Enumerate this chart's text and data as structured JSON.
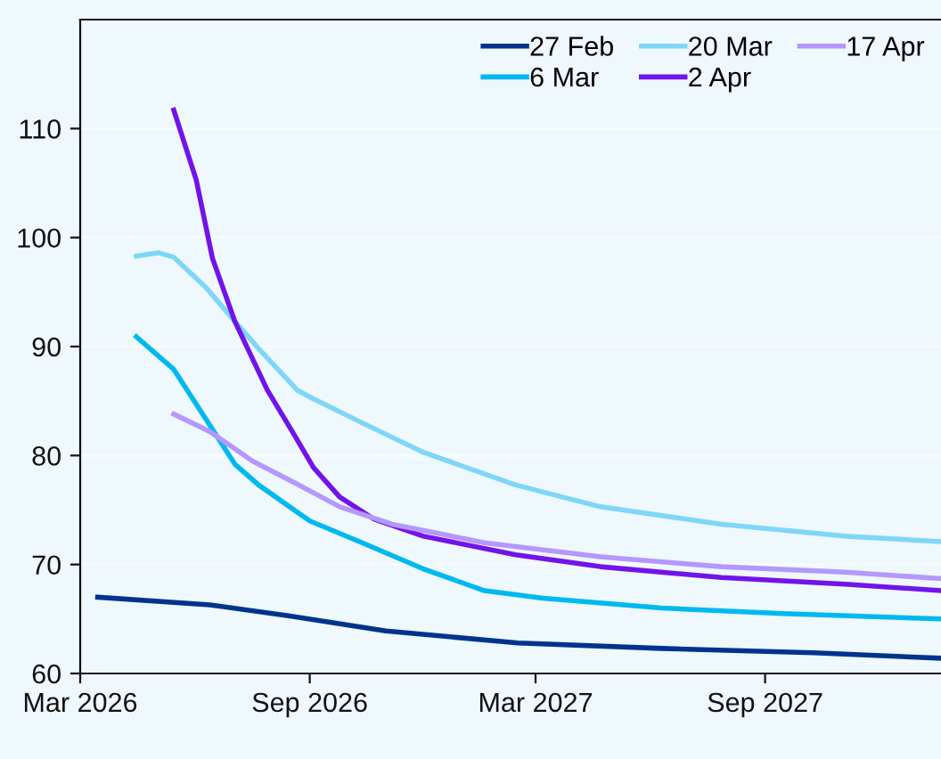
{
  "chart_data": {
    "type": "line",
    "xlim": [
      "2026-03-01",
      "2028-01-20"
    ],
    "xticks": [
      {
        "value": "2026-03-01",
        "label": "Mar 2026"
      },
      {
        "value": "2026-09-01",
        "label": "Sep 2026"
      },
      {
        "value": "2027-03-01",
        "label": "Mar 2027"
      },
      {
        "value": "2027-09-01",
        "label": "Sep 2027"
      }
    ],
    "ylim": [
      60,
      120
    ],
    "yticks": [
      60,
      70,
      80,
      90,
      100,
      110
    ],
    "grid": "y",
    "legend": "top right",
    "marker": "none",
    "line_style": "solid",
    "series": [
      {
        "name": "27 Feb",
        "color": "#00338d",
        "x": [
          "2026-03-15",
          "2026-06-13",
          "2026-08-15",
          "2026-11-01",
          "2027-02-15",
          "2027-06-10",
          "2027-10-10",
          "2028-01-20"
        ],
        "values": [
          67.0,
          66.3,
          65.3,
          63.9,
          62.8,
          62.3,
          61.9,
          61.4
        ]
      },
      {
        "name": "6 Mar",
        "color": "#00b8f0",
        "x": [
          "2026-04-15",
          "2026-05-15",
          "2026-06-10",
          "2026-07-03",
          "2026-07-22",
          "2026-09-01",
          "2026-10-13",
          "2026-12-01",
          "2027-01-19",
          "2027-03-07",
          "2027-06-10",
          "2027-09-15",
          "2028-01-20"
        ],
        "values": [
          90.9,
          87.9,
          83.3,
          79.2,
          77.3,
          74.0,
          72.0,
          69.6,
          67.6,
          66.9,
          66.0,
          65.5,
          65.0
        ]
      },
      {
        "name": "20 Mar",
        "color": "#7fd6f7",
        "x": [
          "2026-04-15",
          "2026-05-03",
          "2026-05-15",
          "2026-06-10",
          "2026-07-03",
          "2026-07-22",
          "2026-08-22",
          "2026-09-04",
          "2026-10-13",
          "2026-12-01",
          "2027-02-13",
          "2027-04-22",
          "2027-07-28",
          "2027-11-04",
          "2028-01-20"
        ],
        "values": [
          98.3,
          98.6,
          98.2,
          95.4,
          92.3,
          89.8,
          86.0,
          85.2,
          83.0,
          80.3,
          77.3,
          75.3,
          73.7,
          72.6,
          72.1
        ]
      },
      {
        "name": "2 Apr",
        "color": "#7213ea",
        "x": [
          "2026-05-15",
          "2026-06-02",
          "2026-06-15",
          "2026-07-03",
          "2026-07-29",
          "2026-08-18",
          "2026-09-04",
          "2026-09-25",
          "2026-10-22",
          "2026-12-01",
          "2027-02-13",
          "2027-04-22",
          "2027-07-28",
          "2027-11-04",
          "2028-01-20"
        ],
        "values": [
          111.7,
          105.3,
          98.1,
          92.3,
          86.0,
          82.2,
          78.9,
          76.2,
          74.2,
          72.6,
          70.9,
          69.8,
          68.8,
          68.2,
          67.6
        ]
      },
      {
        "name": "17 Apr",
        "color": "#b497ff",
        "x": [
          "2026-05-15",
          "2026-06-13",
          "2026-07-17",
          "2026-08-20",
          "2026-09-25",
          "2026-11-06",
          "2027-01-19",
          "2027-04-22",
          "2027-07-28",
          "2027-11-04",
          "2028-01-20"
        ],
        "values": [
          83.8,
          82.2,
          79.5,
          77.5,
          75.3,
          73.7,
          72.0,
          70.7,
          69.8,
          69.3,
          68.7
        ]
      }
    ]
  }
}
